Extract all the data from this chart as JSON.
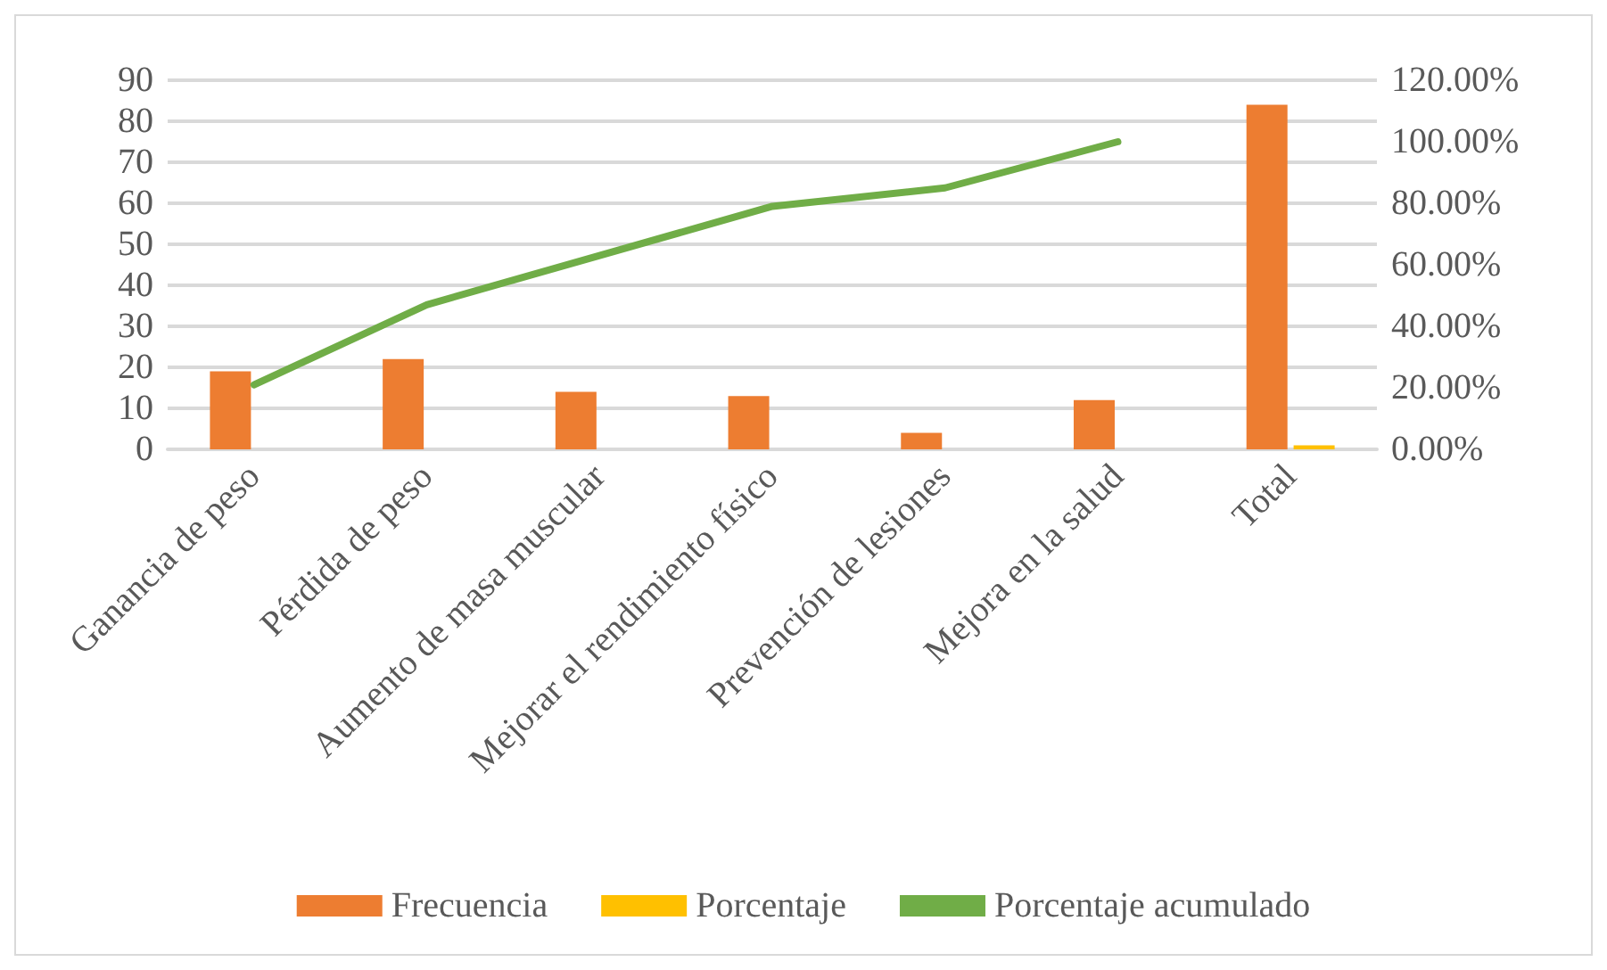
{
  "chart_data": {
    "type": "bar",
    "categories": [
      "Ganancia de peso",
      "Pérdida de peso",
      "Aumento de masa muscular",
      "Mejorar el rendimiento físico",
      "Prevención de lesiones",
      "Mejora en la salud",
      "Total"
    ],
    "series": [
      {
        "name": "Frecuencia",
        "color": "#ed7d31",
        "values": [
          19,
          22,
          14,
          13,
          4,
          12,
          84
        ]
      },
      {
        "name": "Porcentaje",
        "color": "#ffc000",
        "values": [
          null,
          null,
          null,
          null,
          null,
          null,
          1
        ]
      },
      {
        "name": "Porcentaje acumulado",
        "type": "line",
        "axis": "y2",
        "color": "#70ad47",
        "values": [
          21,
          47,
          63,
          79,
          85,
          100,
          null
        ]
      }
    ],
    "ylim": [
      0,
      90
    ],
    "yticks": [
      0,
      10,
      20,
      30,
      40,
      50,
      60,
      70,
      80,
      90
    ],
    "y2lim": [
      0,
      120
    ],
    "y2ticks": [
      {
        "value": 0,
        "label": "0.00%"
      },
      {
        "value": 20,
        "label": "20.00%"
      },
      {
        "value": 40,
        "label": "40.00%"
      },
      {
        "value": 60,
        "label": "60.00%"
      },
      {
        "value": 80,
        "label": "80.00%"
      },
      {
        "value": 100,
        "label": "100.00%"
      },
      {
        "value": 120,
        "label": "120.00%"
      }
    ],
    "grid": "y",
    "legend": "bottom",
    "marker": "none",
    "line_style": "solid"
  }
}
